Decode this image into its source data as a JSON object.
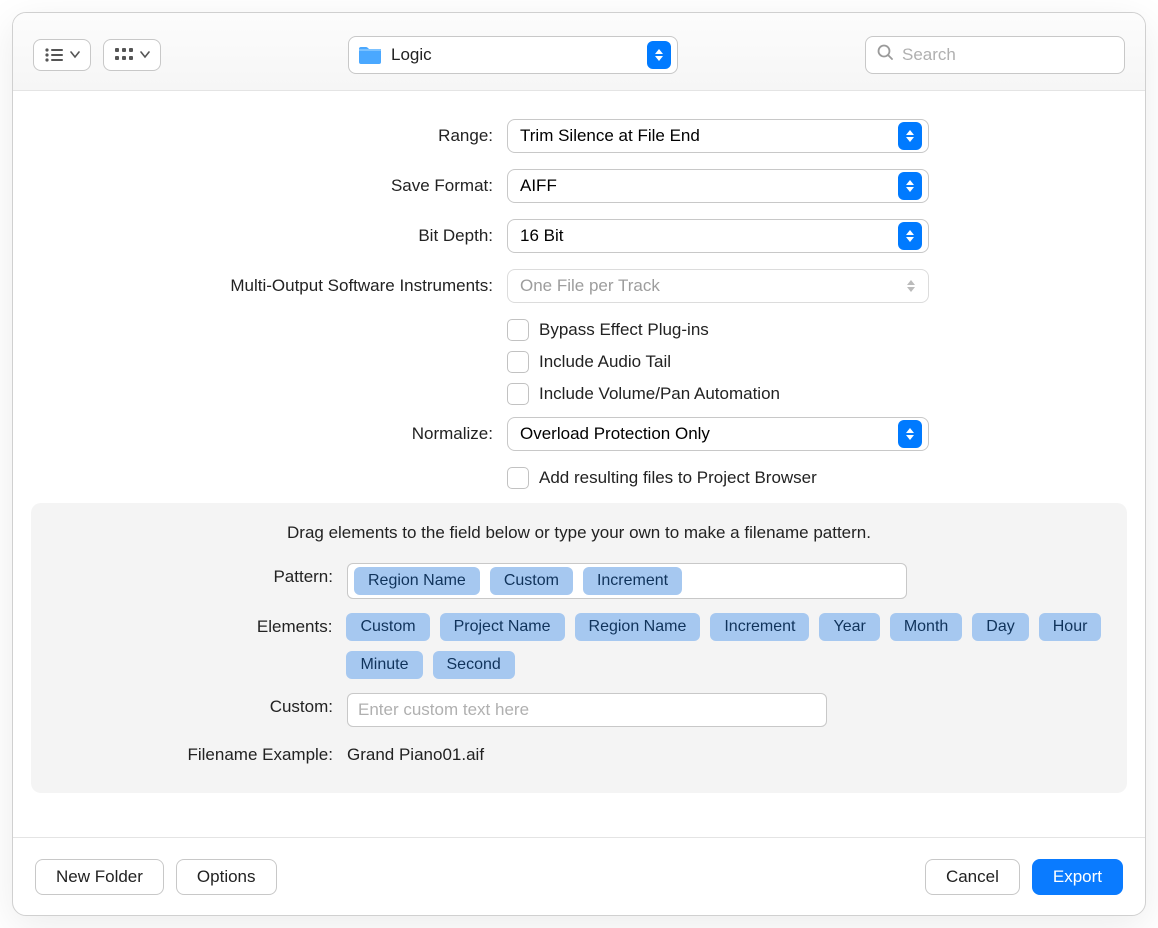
{
  "colors": {
    "accent": "#0a7bff",
    "token_bg": "#a6c8f0",
    "token_fg": "#10335b",
    "panel_bg": "#f4f4f4",
    "border": "#c8c8c8"
  },
  "toolbar": {
    "location": "Logic",
    "search_placeholder": "Search"
  },
  "form": {
    "range": {
      "label": "Range:",
      "value": "Trim Silence at File End"
    },
    "save_format": {
      "label": "Save Format:",
      "value": "AIFF"
    },
    "bit_depth": {
      "label": "Bit Depth:",
      "value": "16 Bit"
    },
    "multi_output": {
      "label": "Multi-Output Software Instruments:",
      "value": "One File per Track",
      "disabled": true
    },
    "checkboxes": {
      "bypass_fx": "Bypass Effect Plug-ins",
      "include_tail": "Include Audio Tail",
      "include_vol_pan": "Include Volume/Pan Automation",
      "add_to_browser": "Add resulting files to Project Browser"
    },
    "normalize": {
      "label": "Normalize:",
      "value": "Overload Protection Only"
    }
  },
  "pattern": {
    "hint": "Drag elements to the field below or type your own to make a filename pattern.",
    "pattern_label": "Pattern:",
    "pattern_tokens": [
      "Region Name",
      "Custom",
      "Increment"
    ],
    "elements_label": "Elements:",
    "elements_tokens": [
      "Custom",
      "Project Name",
      "Region Name",
      "Increment",
      "Year",
      "Month",
      "Day",
      "Hour",
      "Minute",
      "Second"
    ],
    "custom_label": "Custom:",
    "custom_placeholder": "Enter custom text here",
    "example_label": "Filename Example:",
    "example_value": "Grand Piano01.aif"
  },
  "footer": {
    "new_folder": "New Folder",
    "options": "Options",
    "cancel": "Cancel",
    "export": "Export"
  }
}
